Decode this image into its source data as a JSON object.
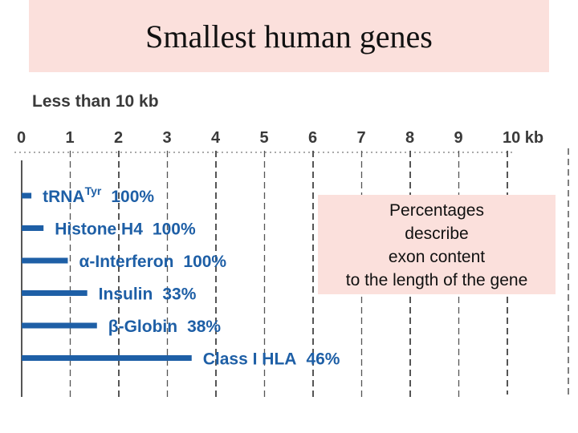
{
  "title": "Smallest human genes",
  "note": {
    "lines": [
      "Percentages",
      "describe",
      "exon content",
      "to the length of the gene"
    ]
  },
  "colors": {
    "bar": "#1e5fa6",
    "title_band": "#fbe0dc",
    "grid": "#555555"
  },
  "chart_data": {
    "type": "bar",
    "orientation": "horizontal",
    "title": "Less than 10 kb",
    "xlabel": "",
    "ylabel": "",
    "xlim": [
      0,
      10
    ],
    "x_ticks": [
      "0",
      "1",
      "2",
      "3",
      "4",
      "5",
      "6",
      "7",
      "8",
      "9",
      "10 kb"
    ],
    "grid": true,
    "genes": [
      {
        "name": "tRNA",
        "sup": "Tyr",
        "prefix": "",
        "percent": "100%",
        "length_kb": 0.2
      },
      {
        "name": "Histone H4",
        "sup": "",
        "prefix": "",
        "percent": "100%",
        "length_kb": 0.45
      },
      {
        "name": "-Interferon",
        "sup": "",
        "prefix": "α",
        "percent": "100%",
        "length_kb": 0.95
      },
      {
        "name": "Insulin",
        "sup": "",
        "prefix": "",
        "percent": "33%",
        "length_kb": 1.35
      },
      {
        "name": "-Globin",
        "sup": "",
        "prefix": "β",
        "percent": "38%",
        "length_kb": 1.55
      },
      {
        "name": "Class I HLA",
        "sup": "",
        "prefix": "",
        "percent": "46%",
        "length_kb": 3.5
      }
    ]
  }
}
